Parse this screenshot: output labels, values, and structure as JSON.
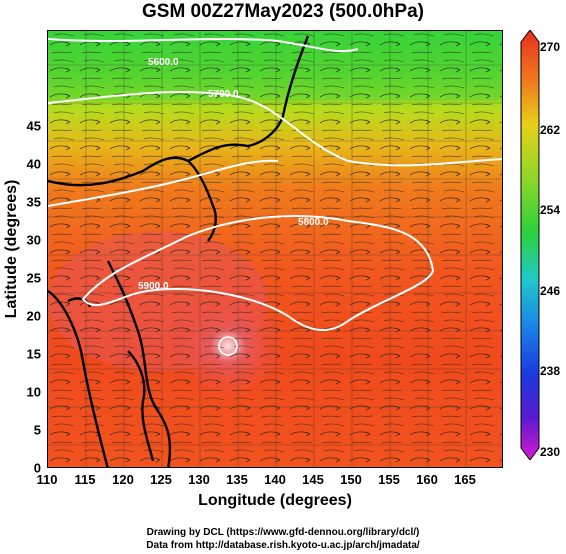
{
  "title": "GSM 00Z27May2023 (500.0hPa)",
  "map": {
    "xlabel": "Longitude (degrees)",
    "ylabel": "Latitude  (degrees)",
    "x_ticks": [
      "110",
      "115",
      "120",
      "125",
      "130",
      "135",
      "140",
      "145",
      "150",
      "155",
      "160",
      "165"
    ],
    "y_ticks": [
      "0",
      "5",
      "10",
      "15",
      "20",
      "25",
      "30",
      "35",
      "40",
      "45"
    ],
    "lon_range": [
      110,
      170
    ],
    "lat_range": [
      0,
      50
    ],
    "contour_labels": [
      "5600.0",
      "5700.0",
      "5800.0",
      "5900.0"
    ]
  },
  "colorbar": {
    "ticks": [
      "270",
      "262",
      "254",
      "246",
      "238",
      "230"
    ],
    "range": [
      230,
      270
    ]
  },
  "credits": {
    "line1": "Drawing by DCL (https://www.gfd-dennou.org/library/dcl/)",
    "line2": "Data from http://database.rish.kyoto-u.ac.jp/arch/jmadata/"
  }
}
